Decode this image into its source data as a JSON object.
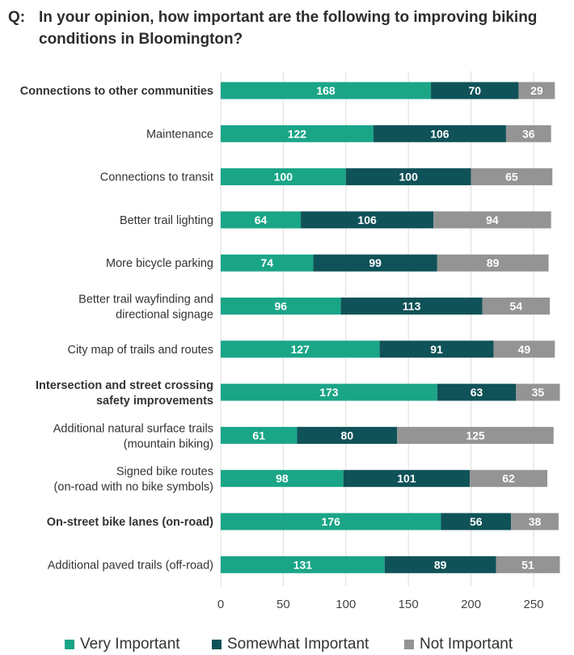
{
  "title": {
    "prefix": "Q:",
    "text": "In your opinion, how important are the following to improving biking conditions in Bloomington?"
  },
  "colors": {
    "very_important": "#1aa587",
    "somewhat_important": "#0f5258",
    "not_important": "#949494",
    "grid": "#dddddd"
  },
  "chart_data": {
    "type": "bar",
    "orientation": "horizontal",
    "stacked": true,
    "title": "In your opinion, how important are the following to improving biking conditions in Bloomington?",
    "categories": [
      [
        "Connections to other communities"
      ],
      [
        "Maintenance"
      ],
      [
        "Connections to transit"
      ],
      [
        "Better trail lighting"
      ],
      [
        "More bicycle parking"
      ],
      [
        "Better trail wayfinding and",
        "directional signage"
      ],
      [
        "City map of trails and routes"
      ],
      [
        "Intersection and street crossing",
        "safety improvements"
      ],
      [
        "Additional natural surface trails",
        "(mountain biking)"
      ],
      [
        "Signed bike routes",
        "(on-road with no bike symbols)"
      ],
      [
        "On-street bike lanes (on-road)"
      ],
      [
        "Additional paved trails (off-road)"
      ]
    ],
    "bold_categories": [
      true,
      false,
      false,
      false,
      false,
      false,
      false,
      true,
      false,
      false,
      true,
      false
    ],
    "series": [
      {
        "name": "Very Important",
        "values": [
          168,
          122,
          100,
          64,
          74,
          96,
          127,
          173,
          61,
          98,
          176,
          131
        ]
      },
      {
        "name": "Somewhat Important",
        "values": [
          70,
          106,
          100,
          106,
          99,
          113,
          91,
          63,
          80,
          101,
          56,
          89
        ]
      },
      {
        "name": "Not  Important",
        "values": [
          29,
          36,
          65,
          94,
          89,
          54,
          49,
          35,
          125,
          62,
          38,
          51
        ]
      }
    ],
    "xlim": [
      0,
      270
    ],
    "xticks": [
      0,
      50,
      100,
      150,
      200,
      250
    ],
    "grid": true,
    "legend_position": "bottom"
  }
}
